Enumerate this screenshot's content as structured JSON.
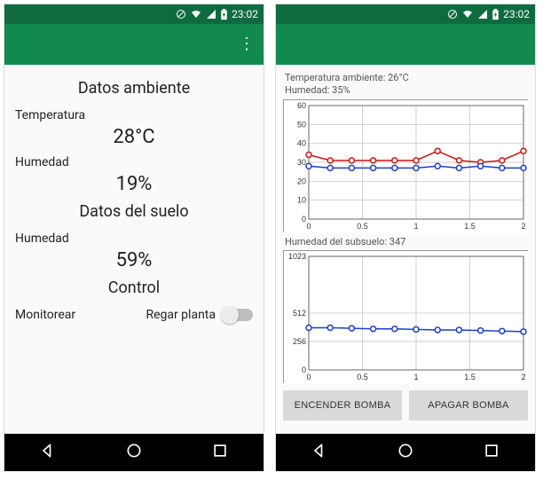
{
  "status": {
    "time": "23:02"
  },
  "left": {
    "section_ambient": "Datos ambiente",
    "temp_label": "Temperatura",
    "temp_value": "28°C",
    "hum_label": "Humedad",
    "hum_value": "19%",
    "section_soil": "Datos del suelo",
    "soil_hum_label": "Humedad",
    "soil_hum_value": "59%",
    "section_control": "Control",
    "monitor_label": "Monitorear",
    "water_label": "Regar planta"
  },
  "right": {
    "caption1_line1": "Temperatura ambiente: 26°C",
    "caption1_line2": "Humedad: 35%",
    "caption2": "Humedad del subsuelo: 347",
    "btn_on": "ENCENDER BOMBA",
    "btn_off": "APAGAR BOMBA",
    "chart1": {
      "type": "line",
      "xlim": [
        0,
        2
      ],
      "ylim": [
        0,
        60
      ],
      "xticks": [
        0,
        0.5,
        1,
        1.5,
        2
      ],
      "yticks": [
        0,
        10,
        20,
        30,
        40,
        50,
        60
      ],
      "series": [
        {
          "color": "#d11515",
          "marker": "circle",
          "y": [
            34,
            31,
            31,
            31,
            31,
            31,
            36,
            31,
            30,
            31,
            36
          ]
        },
        {
          "color": "#1b3fd1",
          "marker": "circle",
          "y": [
            28,
            27,
            27,
            27,
            27,
            27,
            28,
            27,
            28,
            27,
            27
          ]
        }
      ],
      "grid_color": "#bdbdbd",
      "background": "#ffffff",
      "height": 150
    },
    "chart2": {
      "type": "line",
      "xlim": [
        0,
        2
      ],
      "ylim": [
        0,
        1023
      ],
      "xticks": [
        0,
        0.5,
        1,
        1.5,
        2
      ],
      "yticks": [
        0,
        256,
        512,
        1023
      ],
      "series": [
        {
          "color": "#1b3fd1",
          "marker": "circle",
          "y": [
            380,
            380,
            375,
            370,
            370,
            365,
            360,
            360,
            355,
            350,
            345
          ]
        }
      ],
      "grid_color": "#bdbdbd",
      "background": "#ffffff",
      "height": 150
    }
  },
  "colors": {
    "statusbar": "#0f6b3f",
    "toolbar": "#128a4e",
    "button_bg": "#d9d9d9"
  }
}
